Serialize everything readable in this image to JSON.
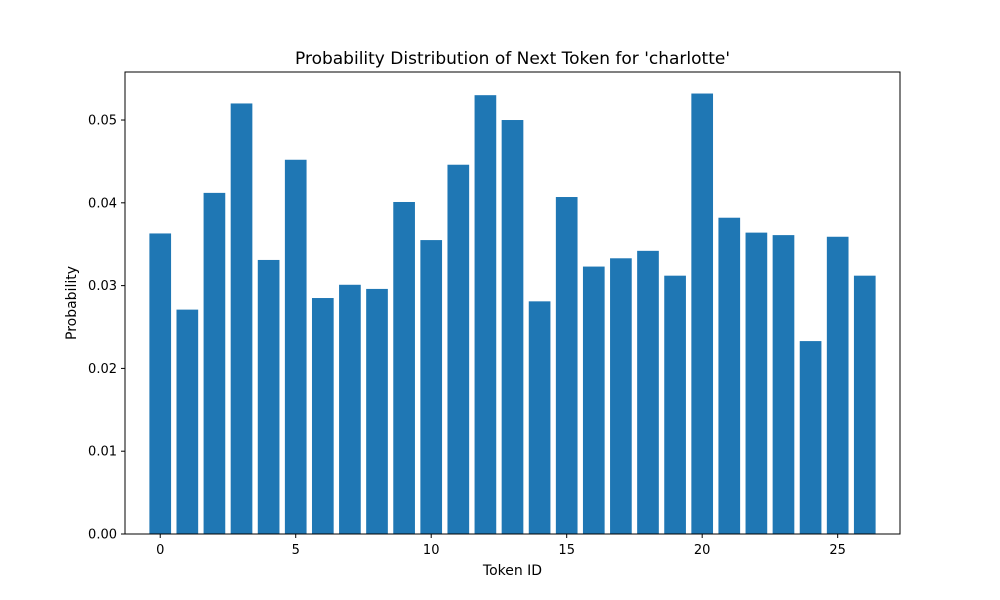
{
  "chart_data": {
    "type": "bar",
    "title": "Probability Distribution of Next Token for 'charlotte'",
    "xlabel": "Token ID",
    "ylabel": "Probability",
    "x": [
      0,
      1,
      2,
      3,
      4,
      5,
      6,
      7,
      8,
      9,
      10,
      11,
      12,
      13,
      14,
      15,
      16,
      17,
      18,
      19,
      20,
      21,
      22,
      23,
      24,
      25,
      26
    ],
    "values": [
      0.0363,
      0.0271,
      0.0412,
      0.052,
      0.0331,
      0.0452,
      0.0285,
      0.0301,
      0.0296,
      0.0401,
      0.0355,
      0.0446,
      0.053,
      0.05,
      0.0281,
      0.0407,
      0.0323,
      0.0333,
      0.0342,
      0.0312,
      0.0532,
      0.0382,
      0.0364,
      0.0361,
      0.0233,
      0.0359,
      0.0312
    ],
    "xlim": [
      -1.3,
      27.3
    ],
    "ylim": [
      0,
      0.0558
    ],
    "xticks": [
      0,
      5,
      10,
      15,
      20,
      25
    ],
    "xtick_labels": [
      "0",
      "5",
      "10",
      "15",
      "20",
      "25"
    ],
    "yticks": [
      0,
      0.01,
      0.02,
      0.03,
      0.04,
      0.05
    ],
    "ytick_labels": [
      "0.00",
      "0.01",
      "0.02",
      "0.03",
      "0.04",
      "0.05"
    ],
    "bar_color": "#1f77b4",
    "grid": false,
    "legend": "none"
  }
}
